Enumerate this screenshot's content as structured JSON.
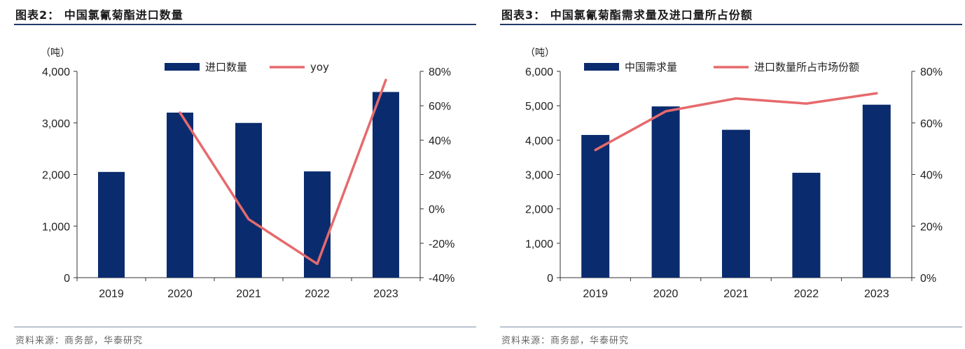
{
  "panels": [
    {
      "title": "图表2：  中国氯氰菊酯进口数量",
      "source": "资料来源：商务部，华泰研究",
      "chart_data": {
        "type": "bar+line",
        "unit_label": "（吨）",
        "categories": [
          "2019",
          "2020",
          "2021",
          "2022",
          "2023"
        ],
        "left_axis": {
          "range": [
            0,
            4000
          ],
          "ticks": [
            0,
            1000,
            2000,
            3000,
            4000
          ],
          "tick_labels": [
            "0",
            "1,000",
            "2,000",
            "3,000",
            "4,000"
          ]
        },
        "right_axis": {
          "range": [
            -40,
            80
          ],
          "ticks": [
            -40,
            -20,
            0,
            20,
            40,
            60,
            80
          ],
          "tick_labels": [
            "-40%",
            "-20%",
            "0%",
            "20%",
            "40%",
            "60%",
            "80%"
          ]
        },
        "series": [
          {
            "name": "进口数量",
            "type": "bar",
            "axis": "left",
            "color": "#0a2c6e",
            "values": [
              2050,
              3200,
              3000,
              2060,
              3600
            ]
          },
          {
            "name": "yoy",
            "type": "line",
            "axis": "right",
            "color": "#e66a6d",
            "values": [
              null,
              56,
              -6,
              -32,
              75
            ]
          }
        ],
        "legend_position": "top-center",
        "grid": false
      }
    },
    {
      "title": "图表3：  中国氯氰菊酯需求量及进口量所占份额",
      "source": "资料来源：商务部，华泰研究",
      "chart_data": {
        "type": "bar+line",
        "unit_label": "（吨）",
        "categories": [
          "2019",
          "2020",
          "2021",
          "2022",
          "2023"
        ],
        "left_axis": {
          "range": [
            0,
            6000
          ],
          "ticks": [
            0,
            1000,
            2000,
            3000,
            4000,
            5000,
            6000
          ],
          "tick_labels": [
            "0",
            "1,000",
            "2,000",
            "3,000",
            "4,000",
            "5,000",
            "6,000"
          ]
        },
        "right_axis": {
          "range": [
            0,
            80
          ],
          "ticks": [
            0,
            20,
            40,
            60,
            80
          ],
          "tick_labels": [
            "0%",
            "20%",
            "40%",
            "60%",
            "80%"
          ]
        },
        "series": [
          {
            "name": "中国需求量",
            "type": "bar",
            "axis": "left",
            "color": "#0a2c6e",
            "values": [
              4150,
              4980,
              4300,
              3050,
              5030
            ]
          },
          {
            "name": "进口数量所占市场份额",
            "type": "line",
            "axis": "right",
            "color": "#e66a6d",
            "values": [
              49.5,
              64.5,
              69.5,
              67.5,
              71.5
            ]
          }
        ],
        "legend_position": "top-center",
        "grid": false
      }
    }
  ]
}
